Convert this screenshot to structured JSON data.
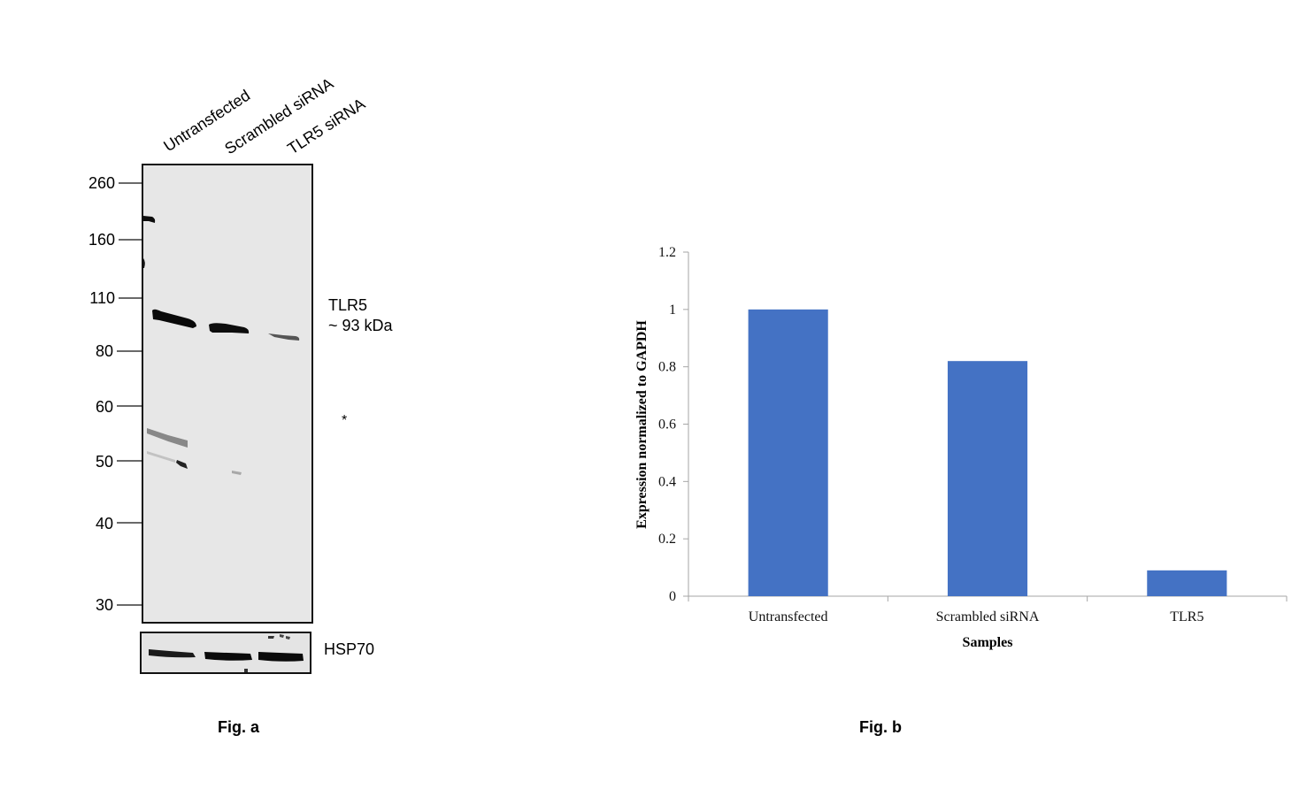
{
  "figure_a": {
    "caption": "Fig. a",
    "lanes": [
      "Untransfected",
      "Scrambled siRNA",
      "TLR5 siRNA"
    ],
    "markers": [
      "260",
      "160",
      "110",
      "80",
      "60",
      "50",
      "40",
      "30"
    ],
    "target_label": "TLR5",
    "target_size": "~ 93 kDa",
    "asterisk": "*",
    "loading_control": "HSP70"
  },
  "chart_data": {
    "type": "bar",
    "caption": "Fig. b",
    "categories": [
      "Untransfected",
      "Scrambled siRNA",
      "TLR5"
    ],
    "values": [
      1.0,
      0.82,
      0.09
    ],
    "title": "",
    "xlabel": "Samples",
    "ylabel": "Expression normalized to GAPDH",
    "ylim": [
      0,
      1.2
    ],
    "yticks": [
      "0",
      "0.2",
      "0.4",
      "0.6",
      "0.8",
      "1",
      "1.2"
    ],
    "bar_color": "#4472C4",
    "grid": false
  }
}
